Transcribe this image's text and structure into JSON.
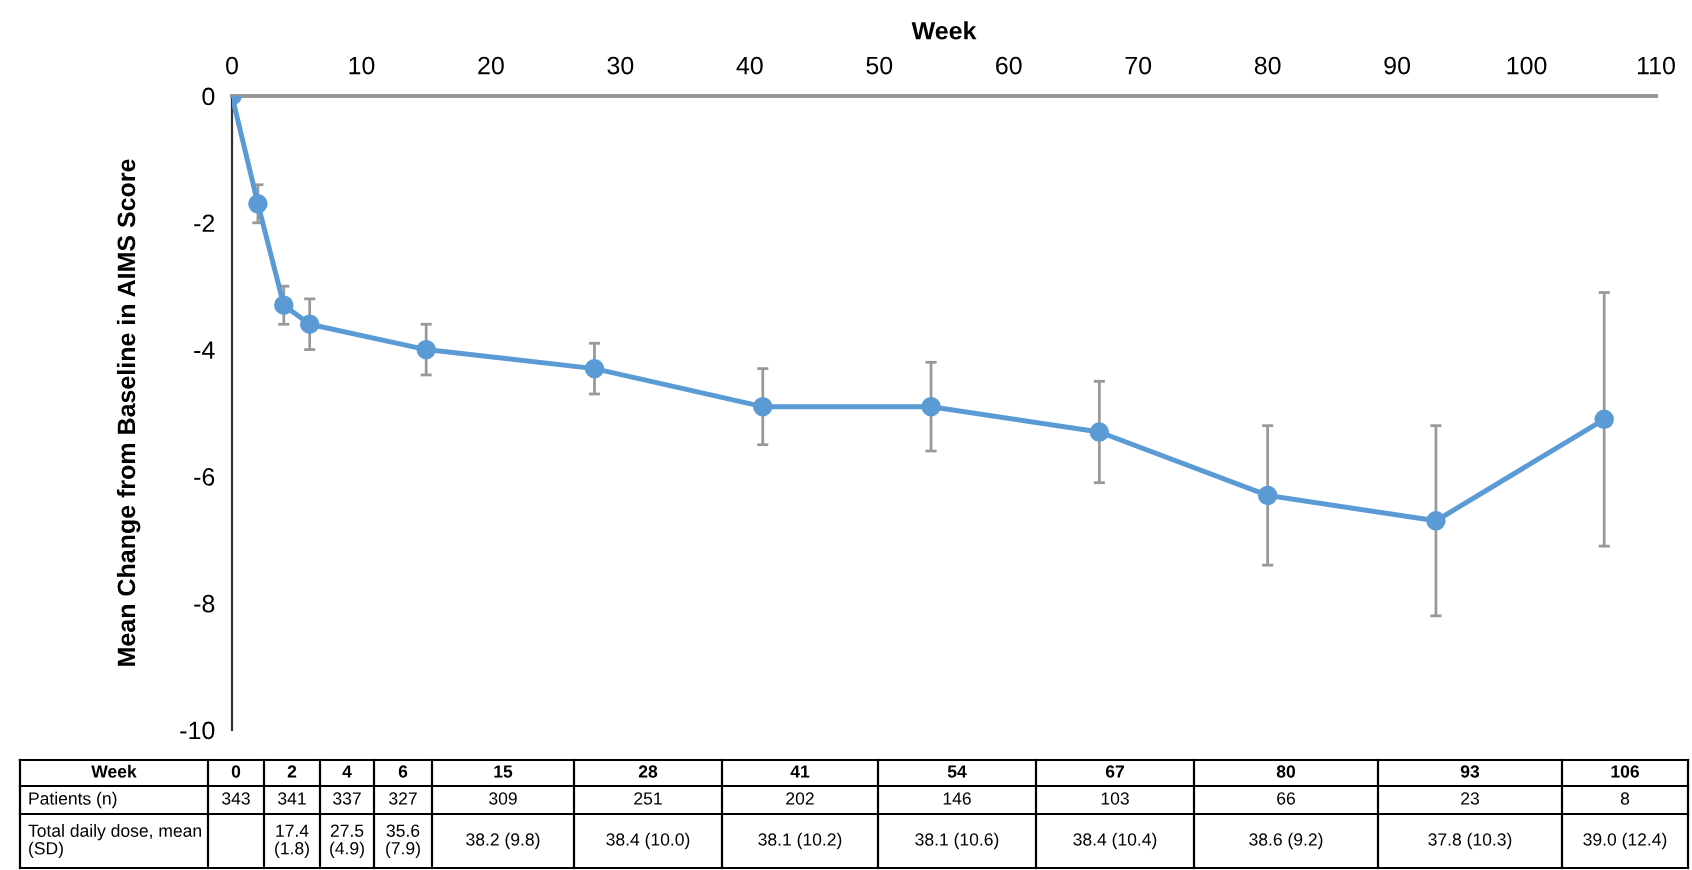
{
  "chart_data": {
    "type": "line",
    "xlabel": "Week",
    "ylabel": "Mean Change from Baseline in AIMS Score",
    "x": [
      0,
      2,
      4,
      6,
      15,
      28,
      41,
      54,
      67,
      80,
      93,
      106
    ],
    "series": [
      {
        "color": "#5b9bd5",
        "values": [
          0,
          -1.7,
          -3.3,
          -3.6,
          -4.0,
          -4.3,
          -4.9,
          -4.9,
          -5.3,
          -6.3,
          -6.7,
          -5.1
        ],
        "errors": [
          null,
          0.3,
          0.3,
          0.4,
          0.4,
          0.4,
          0.6,
          0.7,
          0.8,
          1.1,
          1.5,
          2.0
        ]
      }
    ],
    "xlim": [
      0,
      110
    ],
    "xticks": [
      0,
      10,
      20,
      30,
      40,
      50,
      60,
      70,
      80,
      90,
      100,
      110
    ],
    "ylim": [
      -10,
      0
    ],
    "yticks": [
      -10,
      -8,
      -6,
      -4,
      -2,
      0
    ],
    "marker": "circle",
    "line_style": "solid",
    "grid": false,
    "legend": false,
    "annotations": [
      "Week",
      "0",
      "2",
      "4",
      "6",
      "15",
      "28",
      "41",
      "54",
      "67",
      "80",
      "93",
      "106",
      "Patients (n)",
      "343",
      "341",
      "337",
      "327",
      "309",
      "251",
      "202",
      "146",
      "103",
      "66",
      "23",
      "8",
      "Total daily dose, mean (SD)",
      "17.4 (1.8)",
      "27.5 (4.9)",
      "35.6 (7.9)",
      "38.2 (9.8)",
      "38.4 (10.0)",
      "38.1 (10.2)",
      "38.1 (10.6)",
      "38.4 (10.4)",
      "38.6 (9.2)",
      "37.8 (10.3)",
      "39.0 (12.4)"
    ]
  }
}
